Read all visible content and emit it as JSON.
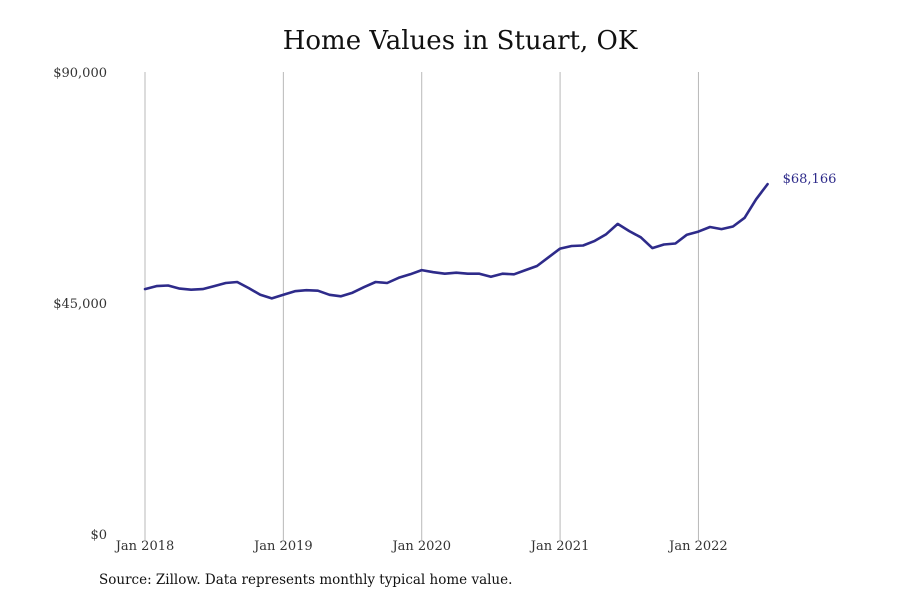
{
  "chart_data": {
    "type": "line",
    "title": "Home Values in Stuart, OK",
    "xlabel": "",
    "ylabel": "",
    "x_start": "Jan 2018",
    "x_ticks": [
      "Jan 2018",
      "Jan 2019",
      "Jan 2020",
      "Jan 2021",
      "Jan 2022"
    ],
    "y_ticks": [
      {
        "value": 0,
        "label": "$0"
      },
      {
        "value": 45000,
        "label": "$45,000"
      },
      {
        "value": 90000,
        "label": "$90,000"
      }
    ],
    "ylim": [
      0,
      90000
    ],
    "grid": "vertical",
    "series": [
      {
        "name": "",
        "color": "#2e2b8a",
        "end_label": "$68,166",
        "values": [
          47700,
          48300,
          48400,
          47800,
          47600,
          47700,
          48300,
          48900,
          49100,
          47900,
          46600,
          45900,
          46600,
          47300,
          47500,
          47400,
          46600,
          46300,
          47000,
          48100,
          49100,
          48900,
          49900,
          50600,
          51400,
          51000,
          50700,
          50900,
          50700,
          50700,
          50100,
          50700,
          50600,
          51400,
          52200,
          53900,
          55600,
          56100,
          56200,
          57100,
          58400,
          60400,
          59000,
          57800,
          55700,
          56400,
          56600,
          58300,
          58900,
          59800,
          59400,
          59900,
          61600,
          65200,
          68166
        ]
      }
    ]
  },
  "source_note": "Source: Zillow. Data represents monthly typical home value."
}
